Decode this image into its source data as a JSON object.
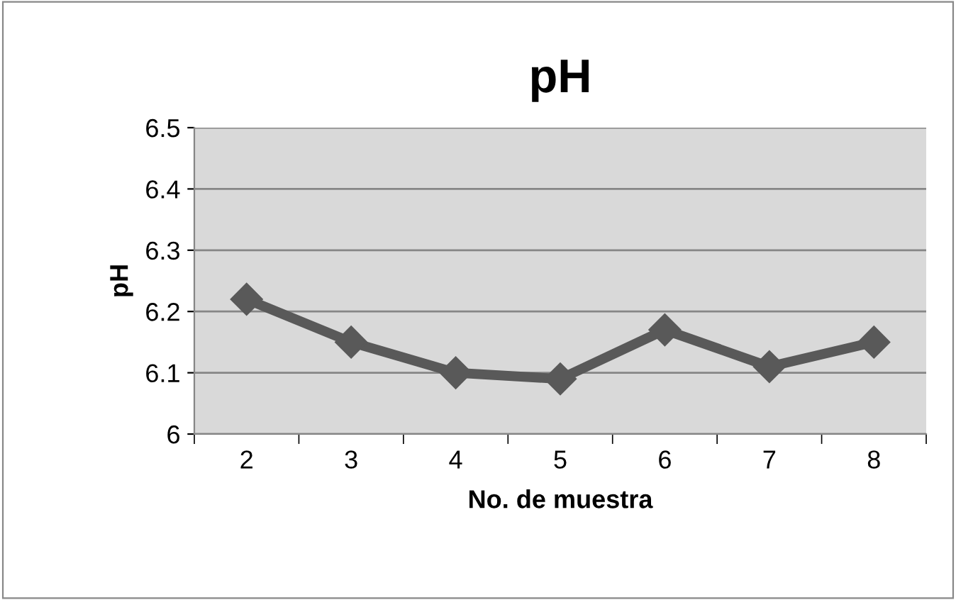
{
  "chart_data": {
    "type": "line",
    "title": "pH",
    "xlabel": "No. de muestra",
    "ylabel": "pH",
    "categories": [
      "2",
      "3",
      "4",
      "5",
      "6",
      "7",
      "8"
    ],
    "series": [
      {
        "color": "#595959",
        "values": [
          6.22,
          6.15,
          6.1,
          6.09,
          6.17,
          6.11,
          6.15
        ]
      }
    ],
    "ylim": [
      6,
      6.5
    ],
    "yticks": [
      {
        "value": 6,
        "label": "6"
      },
      6.1,
      6.2,
      6.3,
      6.4,
      6.5
    ],
    "grid": "y",
    "marker": "diamond",
    "line_style": "solid",
    "legend": false
  }
}
